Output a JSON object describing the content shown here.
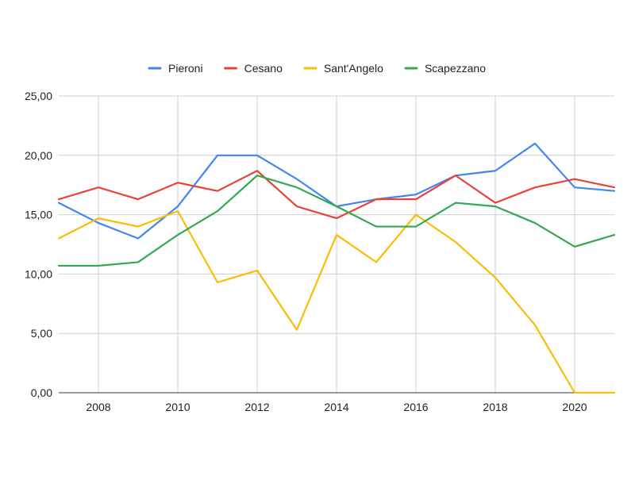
{
  "chart_data": {
    "type": "line",
    "title": "",
    "xlabel": "",
    "ylabel": "",
    "x": [
      2007,
      2008,
      2009,
      2010,
      2011,
      2012,
      2013,
      2014,
      2015,
      2016,
      2017,
      2018,
      2019,
      2020,
      2021
    ],
    "xlim": [
      2007,
      2021
    ],
    "ylim": [
      0,
      25
    ],
    "x_ticks": [
      2008,
      2010,
      2012,
      2014,
      2016,
      2018,
      2020
    ],
    "x_tick_labels": [
      "2008",
      "2010",
      "2012",
      "2014",
      "2016",
      "2018",
      "2020"
    ],
    "y_ticks": [
      0,
      5,
      10,
      15,
      20,
      25
    ],
    "y_tick_labels": [
      "0,00",
      "5,00",
      "10,00",
      "15,00",
      "20,00",
      "25,00"
    ],
    "grid": true,
    "legend_position": "top-center",
    "series": [
      {
        "name": "Pieroni",
        "color": "#4285f4",
        "values": [
          16.0,
          14.3,
          13.0,
          15.7,
          20.0,
          20.0,
          18.0,
          15.7,
          16.3,
          16.7,
          18.3,
          18.7,
          21.0,
          17.3,
          17.0
        ]
      },
      {
        "name": "Cesano",
        "color": "#ea4335",
        "values": [
          16.3,
          17.3,
          16.3,
          17.7,
          17.0,
          18.7,
          15.7,
          14.7,
          16.3,
          16.3,
          18.3,
          16.0,
          17.3,
          18.0,
          17.3
        ]
      },
      {
        "name": "Sant'Angelo",
        "color": "#fbbc04",
        "values": [
          13.0,
          14.7,
          14.0,
          15.3,
          9.3,
          10.3,
          5.3,
          13.3,
          11.0,
          15.0,
          12.7,
          9.7,
          5.7,
          0.0,
          0.0
        ]
      },
      {
        "name": "Scapezzano",
        "color": "#34a853",
        "values": [
          10.7,
          10.7,
          11.0,
          13.3,
          15.3,
          18.3,
          17.3,
          15.7,
          14.0,
          14.0,
          16.0,
          15.7,
          14.3,
          12.3,
          13.3
        ]
      }
    ]
  }
}
